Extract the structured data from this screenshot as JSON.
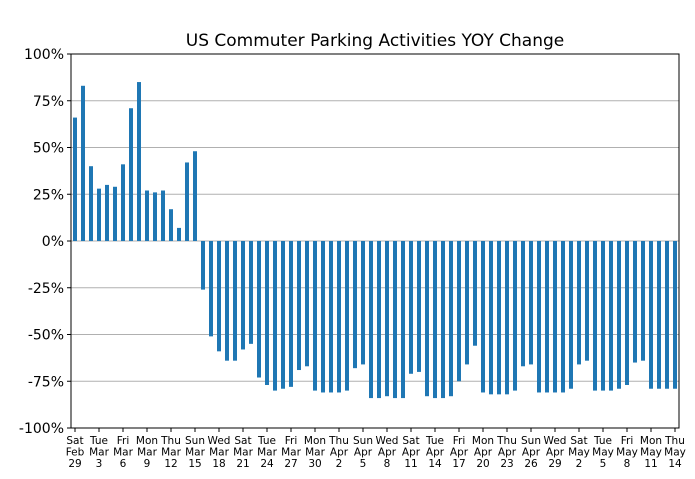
{
  "chart_data": {
    "type": "bar",
    "title": "US Commuter Parking Activities YOY Change",
    "xlabel": "",
    "ylabel": "",
    "ylim": [
      -100,
      100
    ],
    "yticks": [
      100,
      75,
      50,
      25,
      0,
      -25,
      -50,
      -75,
      -100
    ],
    "ytick_labels": [
      "100%",
      "75%",
      "50%",
      "25%",
      "0%",
      "-25%",
      "-50%",
      "-75%",
      "-100%"
    ],
    "grid": "horizontal",
    "color": "#1f77b4",
    "categories": [
      "Feb 29",
      "Mar 1",
      "Mar 2",
      "Mar 3",
      "Mar 4",
      "Mar 5",
      "Mar 6",
      "Mar 7",
      "Mar 8",
      "Mar 9",
      "Mar 10",
      "Mar 11",
      "Mar 12",
      "Mar 13",
      "Mar 14",
      "Mar 15",
      "Mar 16",
      "Mar 17",
      "Mar 18",
      "Mar 19",
      "Mar 20",
      "Mar 21",
      "Mar 22",
      "Mar 23",
      "Mar 24",
      "Mar 25",
      "Mar 26",
      "Mar 27",
      "Mar 28",
      "Mar 29",
      "Mar 30",
      "Mar 31",
      "Apr 1",
      "Apr 2",
      "Apr 3",
      "Apr 4",
      "Apr 5",
      "Apr 6",
      "Apr 7",
      "Apr 8",
      "Apr 9",
      "Apr 10",
      "Apr 11",
      "Apr 12",
      "Apr 13",
      "Apr 14",
      "Apr 15",
      "Apr 16",
      "Apr 17",
      "Apr 18",
      "Apr 19",
      "Apr 20",
      "Apr 21",
      "Apr 22",
      "Apr 23",
      "Apr 24",
      "Apr 25",
      "Apr 26",
      "Apr 27",
      "Apr 28",
      "Apr 29",
      "Apr 30",
      "May 1",
      "May 2",
      "May 3",
      "May 4",
      "May 5",
      "May 6",
      "May 7",
      "May 8",
      "May 9",
      "May 10",
      "May 11",
      "May 12",
      "May 13",
      "May 14"
    ],
    "values": [
      66,
      83,
      40,
      28,
      30,
      29,
      41,
      71,
      85,
      27,
      26,
      27,
      17,
      7,
      42,
      48,
      -26,
      -51,
      -59,
      -64,
      -64,
      -58,
      -55,
      -73,
      -77,
      -80,
      -79,
      -78,
      -69,
      -67,
      -80,
      -81,
      -81,
      -81,
      -80,
      -68,
      -66,
      -84,
      -84,
      -83,
      -84,
      -84,
      -71,
      -70,
      -83,
      -84,
      -84,
      -83,
      -75,
      -66,
      -56,
      -81,
      -82,
      -82,
      -82,
      -80,
      -67,
      -66,
      -81,
      -81,
      -81,
      -81,
      -79,
      -66,
      -64,
      -80,
      -80,
      -80,
      -79,
      -77,
      -65,
      -64,
      -79,
      -79,
      -79,
      -79
    ],
    "xtick_labels": [
      [
        "Sat",
        "Feb",
        "29"
      ],
      [
        "Tue",
        "Mar",
        "3"
      ],
      [
        "Fri",
        "Mar",
        "6"
      ],
      [
        "Mon",
        "Mar",
        "9"
      ],
      [
        "Thu",
        "Mar",
        "12"
      ],
      [
        "Sun",
        "Mar",
        "15"
      ],
      [
        "Wed",
        "Mar",
        "18"
      ],
      [
        "Sat",
        "Mar",
        "21"
      ],
      [
        "Tue",
        "Mar",
        "24"
      ],
      [
        "Fri",
        "Mar",
        "27"
      ],
      [
        "Mon",
        "Mar",
        "30"
      ],
      [
        "Thu",
        "Apr",
        "2"
      ],
      [
        "Sun",
        "Apr",
        "5"
      ],
      [
        "Wed",
        "Apr",
        "8"
      ],
      [
        "Sat",
        "Apr",
        "11"
      ],
      [
        "Tue",
        "Apr",
        "14"
      ],
      [
        "Fri",
        "Apr",
        "17"
      ],
      [
        "Mon",
        "Apr",
        "20"
      ],
      [
        "Thu",
        "Apr",
        "23"
      ],
      [
        "Sun",
        "Apr",
        "26"
      ],
      [
        "Wed",
        "Apr",
        "29"
      ],
      [
        "Sat",
        "May",
        "2"
      ],
      [
        "Tue",
        "May",
        "5"
      ],
      [
        "Fri",
        "May",
        "8"
      ],
      [
        "Mon",
        "May",
        "11"
      ],
      [
        "Thu",
        "May",
        "14"
      ]
    ],
    "xtick_every": 3
  }
}
